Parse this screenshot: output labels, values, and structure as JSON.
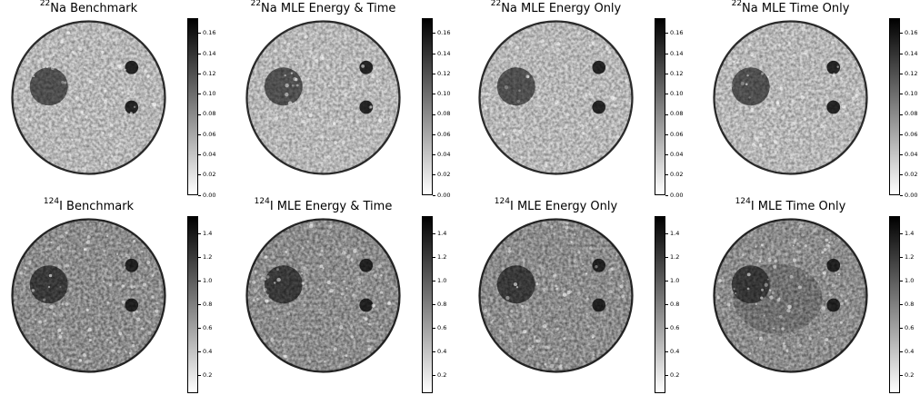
{
  "rows": [
    {
      "panels": [
        {
          "iso": "22",
          "label": "Na Benchmark"
        },
        {
          "iso": "22",
          "label": "Na MLE Energy & Time"
        },
        {
          "iso": "22",
          "label": "Na MLE Energy Only"
        },
        {
          "iso": "22",
          "label": "Na MLE Time Only"
        }
      ],
      "colorbar_ticks": [
        "0.16",
        "0.14",
        "0.12",
        "0.10",
        "0.08",
        "0.06",
        "0.04",
        "0.02",
        "0.00"
      ],
      "colorbar_range": [
        0,
        0.175
      ]
    },
    {
      "panels": [
        {
          "iso": "124",
          "label": "I Benchmark"
        },
        {
          "iso": "124",
          "label": "I MLE Energy & Time"
        },
        {
          "iso": "124",
          "label": "I MLE Energy Only"
        },
        {
          "iso": "124",
          "label": "I MLE Time Only"
        }
      ],
      "colorbar_ticks": [
        "1.4",
        "1.2",
        "1.0",
        "0.8",
        "0.6",
        "0.4",
        "0.2"
      ],
      "colorbar_range": [
        0.05,
        1.55
      ]
    }
  ],
  "colormap": [
    "#ffffff",
    "#000000"
  ]
}
